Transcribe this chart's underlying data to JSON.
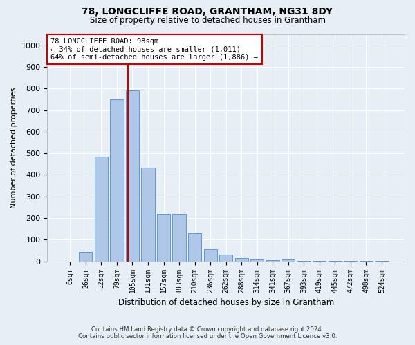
{
  "title1": "78, LONGCLIFFE ROAD, GRANTHAM, NG31 8DY",
  "title2": "Size of property relative to detached houses in Grantham",
  "xlabel": "Distribution of detached houses by size in Grantham",
  "ylabel": "Number of detached properties",
  "footnote1": "Contains HM Land Registry data © Crown copyright and database right 2024.",
  "footnote2": "Contains public sector information licensed under the Open Government Licence v3.0.",
  "bar_labels": [
    "0sqm",
    "26sqm",
    "52sqm",
    "79sqm",
    "105sqm",
    "131sqm",
    "157sqm",
    "183sqm",
    "210sqm",
    "236sqm",
    "262sqm",
    "288sqm",
    "314sqm",
    "341sqm",
    "367sqm",
    "393sqm",
    "419sqm",
    "445sqm",
    "472sqm",
    "498sqm",
    "524sqm"
  ],
  "bar_values": [
    0,
    45,
    485,
    750,
    790,
    435,
    220,
    220,
    130,
    55,
    30,
    15,
    10,
    5,
    10,
    3,
    2,
    1,
    1,
    1,
    1
  ],
  "bar_color": "#aec6e8",
  "bar_edge_color": "#5b9bd5",
  "background_color": "#e8eef5",
  "grid_color": "#ffffff",
  "property_sqm": 98,
  "annotation_line1": "78 LONGCLIFFE ROAD: 98sqm",
  "annotation_line2": "← 34% of detached houses are smaller (1,011)",
  "annotation_line3": "64% of semi-detached houses are larger (1,886) →",
  "annotation_box_color": "#ffffff",
  "annotation_box_edge_color": "#cc0000",
  "ylim": [
    0,
    1050
  ],
  "yticks": [
    0,
    100,
    200,
    300,
    400,
    500,
    600,
    700,
    800,
    900,
    1000
  ]
}
